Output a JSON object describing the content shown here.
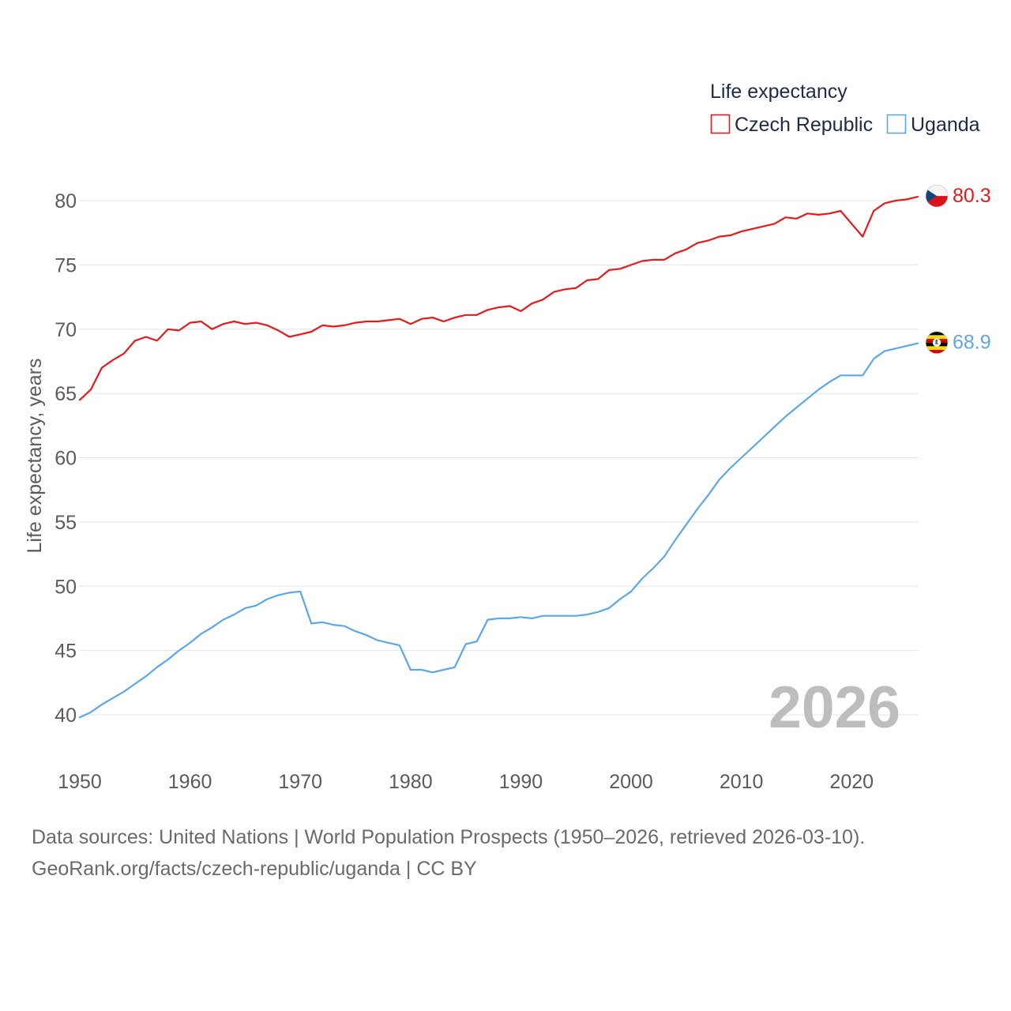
{
  "chart_data": {
    "type": "line",
    "title": "Life expectancy",
    "xlabel": "",
    "ylabel": "Life expectancy, years",
    "annotation": "2026",
    "legend": "top-right",
    "grid": true,
    "xlim": [
      1950,
      2026
    ],
    "ylim": [
      40,
      80
    ],
    "xticks": [
      1950,
      1960,
      1970,
      1980,
      1990,
      2000,
      2010,
      2020
    ],
    "yticks": [
      40,
      45,
      50,
      55,
      60,
      65,
      70,
      75,
      80
    ],
    "x": [
      1950,
      1951,
      1952,
      1953,
      1954,
      1955,
      1956,
      1957,
      1958,
      1959,
      1960,
      1961,
      1962,
      1963,
      1964,
      1965,
      1966,
      1967,
      1968,
      1969,
      1970,
      1971,
      1972,
      1973,
      1974,
      1975,
      1976,
      1977,
      1978,
      1979,
      1980,
      1981,
      1982,
      1983,
      1984,
      1985,
      1986,
      1987,
      1988,
      1989,
      1990,
      1991,
      1992,
      1993,
      1994,
      1995,
      1996,
      1997,
      1998,
      1999,
      2000,
      2001,
      2002,
      2003,
      2004,
      2005,
      2006,
      2007,
      2008,
      2009,
      2010,
      2011,
      2012,
      2013,
      2014,
      2015,
      2016,
      2017,
      2018,
      2019,
      2020,
      2021,
      2022,
      2023,
      2024,
      2025,
      2026
    ],
    "series": [
      {
        "name": "Czech Republic",
        "color": "#e8191c",
        "icon": "czech-republic-flag-icon",
        "end_label": "80.3",
        "values": [
          64.5,
          65.3,
          67.0,
          67.6,
          68.1,
          69.1,
          69.4,
          69.1,
          70.0,
          69.9,
          70.5,
          70.6,
          70.0,
          70.4,
          70.6,
          70.4,
          70.5,
          70.3,
          69.9,
          69.4,
          69.6,
          69.8,
          70.3,
          70.2,
          70.3,
          70.5,
          70.6,
          70.6,
          70.7,
          70.8,
          70.4,
          70.8,
          70.9,
          70.6,
          70.9,
          71.1,
          71.1,
          71.5,
          71.7,
          71.8,
          71.4,
          72.0,
          72.3,
          72.9,
          73.1,
          73.2,
          73.8,
          73.9,
          74.6,
          74.7,
          75.0,
          75.3,
          75.4,
          75.4,
          75.9,
          76.2,
          76.7,
          76.9,
          77.2,
          77.3,
          77.6,
          77.8,
          78.0,
          78.2,
          78.7,
          78.6,
          79.0,
          78.9,
          79.0,
          79.2,
          78.2,
          77.2,
          79.2,
          79.8,
          80.0,
          80.1,
          80.3
        ]
      },
      {
        "name": "Uganda",
        "color": "#5da7e6",
        "icon": "uganda-flag-icon",
        "end_label": "68.9",
        "values": [
          39.8,
          40.2,
          40.8,
          41.3,
          41.8,
          42.4,
          43.0,
          43.7,
          44.3,
          45.0,
          45.6,
          46.3,
          46.8,
          47.4,
          47.8,
          48.3,
          48.5,
          49.0,
          49.3,
          49.5,
          49.6,
          47.1,
          47.2,
          47.0,
          46.9,
          46.5,
          46.2,
          45.8,
          45.6,
          45.4,
          43.5,
          43.5,
          43.3,
          43.5,
          43.7,
          45.5,
          45.7,
          47.4,
          47.5,
          47.5,
          47.6,
          47.5,
          47.7,
          47.7,
          47.7,
          47.7,
          47.8,
          48.0,
          48.3,
          49.0,
          49.6,
          50.6,
          51.4,
          52.3,
          53.6,
          54.8,
          56.0,
          57.1,
          58.3,
          59.2,
          60.0,
          60.8,
          61.6,
          62.4,
          63.2,
          63.9,
          64.6,
          65.3,
          65.9,
          66.4,
          66.4,
          66.4,
          67.7,
          68.3,
          68.5,
          68.7,
          68.9
        ]
      }
    ]
  },
  "footer": {
    "sources": "Data sources: United Nations | World Population Prospects (1950–2026, retrieved 2026-03-10).",
    "attribution": "GeoRank.org/facts/czech-republic/uganda | CC BY"
  }
}
